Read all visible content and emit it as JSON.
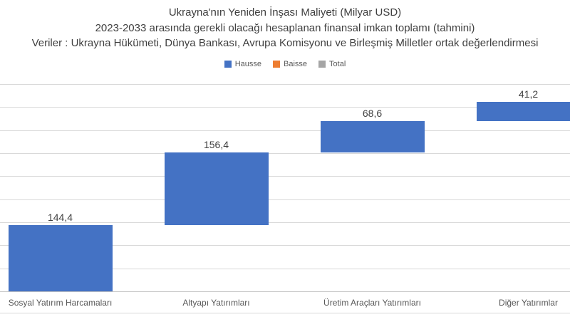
{
  "chart_data": {
    "type": "bar",
    "subtype": "waterfall",
    "title": "Ukrayna'nın Yeniden İnşası Maliyeti (Milyar USD)",
    "subtitle": "2023-2033 arasında gerekli olacağı hesaplanan finansal imkan toplamı (tahmini)",
    "source_note": "Veriler : Ukrayna Hükümeti, Dünya Bankası, Avrupa Komisyonu ve Birleşmiş Milletler ortak değerlendirmesi",
    "categories": [
      "Sosyal Yatırım Harcamaları",
      "Altyapı Yatırımları",
      "Üretim Araçları Yatırımları",
      "Diğer Yatırımlar"
    ],
    "values": [
      144.4,
      156.4,
      68.6,
      41.2
    ],
    "value_labels": [
      "144,4",
      "156,4",
      "68,6",
      "41,2"
    ],
    "cumulative_start": [
      0,
      144.4,
      300.8,
      369.4
    ],
    "cumulative_end": [
      144.4,
      300.8,
      369.4,
      410.6
    ],
    "legend": [
      {
        "label": "Hausse",
        "color": "#4472C4"
      },
      {
        "label": "Baisse",
        "color": "#ED7D31"
      },
      {
        "label": "Total",
        "color": "#A5A5A5"
      }
    ],
    "legend_position": "top",
    "bar_color": "#4472C4",
    "grid": true,
    "gridline_color": "#d9d9d9",
    "ylim": [
      0,
      450
    ],
    "gridline_step": 50,
    "xlabel": "",
    "ylabel": ""
  }
}
